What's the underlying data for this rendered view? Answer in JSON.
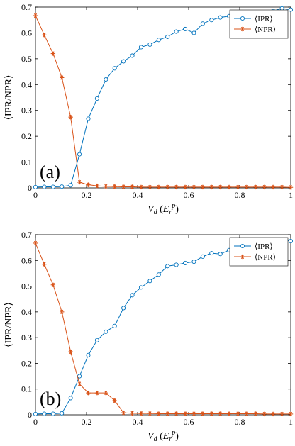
{
  "colors": {
    "ipr": "#0072BD",
    "npr": "#D95319"
  },
  "chart_data": [
    {
      "type": "line",
      "panel_label": "(a)",
      "xlabel": "V_d (E_r^p)",
      "ylabel": "⟨IPR/NPR⟩",
      "xlim": [
        0,
        1
      ],
      "ylim": [
        0,
        0.7
      ],
      "xticks": [
        "0",
        "0.2",
        "0.4",
        "0.6",
        "0.8",
        "1"
      ],
      "yticks": [
        "0",
        "0.1",
        "0.2",
        "0.3",
        "0.4",
        "0.5",
        "0.6",
        "0.7"
      ],
      "legend_position": "top-right",
      "series": [
        {
          "name": "⟨IPR⟩",
          "marker": "circle",
          "x": [
            0,
            0.0345,
            0.069,
            0.1034,
            0.1379,
            0.1724,
            0.2069,
            0.2414,
            0.2759,
            0.3103,
            0.3448,
            0.3793,
            0.4138,
            0.4483,
            0.4828,
            0.5172,
            0.5517,
            0.5862,
            0.6207,
            0.6552,
            0.6897,
            0.7241,
            0.7586,
            0.7931,
            0.8276,
            0.8621,
            0.8966,
            0.931,
            0.9655,
            1
          ],
          "y": [
            0.003,
            0.004,
            0.004,
            0.005,
            0.01,
            0.13,
            0.268,
            0.346,
            0.42,
            0.463,
            0.49,
            0.512,
            0.545,
            0.555,
            0.573,
            0.585,
            0.605,
            0.615,
            0.6,
            0.636,
            0.65,
            0.66,
            0.665,
            0.67,
            0.674,
            0.68,
            0.68,
            0.685,
            0.695,
            0.69
          ]
        },
        {
          "name": "⟨NPR⟩",
          "marker": "asterisk",
          "x": [
            0,
            0.0345,
            0.069,
            0.1034,
            0.1379,
            0.1724,
            0.2069,
            0.2414,
            0.2759,
            0.3103,
            0.3448,
            0.3793,
            0.4138,
            0.4483,
            0.4828,
            0.5172,
            0.5517,
            0.5862,
            0.6207,
            0.6552,
            0.6897,
            0.7241,
            0.7586,
            0.7931,
            0.8276,
            0.8621,
            0.8966,
            0.931,
            0.9655,
            1
          ],
          "y": [
            0.667,
            0.592,
            0.52,
            0.427,
            0.274,
            0.022,
            0.012,
            0.008,
            0.006,
            0.005,
            0.004,
            0.004,
            0.003,
            0.003,
            0.003,
            0.003,
            0.003,
            0.003,
            0.003,
            0.003,
            0.003,
            0.003,
            0.003,
            0.003,
            0.003,
            0.003,
            0.003,
            0.003,
            0.003,
            0.002
          ]
        }
      ]
    },
    {
      "type": "line",
      "panel_label": "(b)",
      "xlabel": "V_d (E_r^p)",
      "ylabel": "⟨IPR/NPR⟩",
      "xlim": [
        0,
        1
      ],
      "ylim": [
        0,
        0.7
      ],
      "xticks": [
        "0",
        "0.2",
        "0.4",
        "0.6",
        "0.8",
        "1"
      ],
      "yticks": [
        "0",
        "0.1",
        "0.2",
        "0.3",
        "0.4",
        "0.5",
        "0.6",
        "0.7"
      ],
      "legend_position": "top-right",
      "series": [
        {
          "name": "⟨IPR⟩",
          "marker": "circle",
          "x": [
            0,
            0.0345,
            0.069,
            0.1034,
            0.1379,
            0.1724,
            0.2069,
            0.2414,
            0.2759,
            0.3103,
            0.3448,
            0.3793,
            0.4138,
            0.4483,
            0.4828,
            0.5172,
            0.5517,
            0.5862,
            0.6207,
            0.6552,
            0.6897,
            0.7241,
            0.7586,
            0.7931,
            0.8276,
            0.8621,
            0.8966,
            0.931,
            0.9655,
            1
          ],
          "y": [
            0.003,
            0.004,
            0.004,
            0.006,
            0.065,
            0.15,
            0.232,
            0.29,
            0.323,
            0.345,
            0.415,
            0.465,
            0.495,
            0.52,
            0.545,
            0.578,
            0.583,
            0.59,
            0.595,
            0.615,
            0.628,
            0.625,
            0.64,
            0.648,
            0.655,
            0.66,
            0.665,
            0.665,
            0.68,
            0.675
          ]
        },
        {
          "name": "⟨NPR⟩",
          "marker": "asterisk",
          "x": [
            0,
            0.0345,
            0.069,
            0.1034,
            0.1379,
            0.1724,
            0.2069,
            0.2414,
            0.2759,
            0.3103,
            0.3448,
            0.3793,
            0.4138,
            0.4483,
            0.4828,
            0.5172,
            0.5517,
            0.5862,
            0.6207,
            0.6552,
            0.6897,
            0.7241,
            0.7586,
            0.7931,
            0.8276,
            0.8621,
            0.8966,
            0.931,
            0.9655,
            1
          ],
          "y": [
            0.667,
            0.585,
            0.505,
            0.4,
            0.245,
            0.12,
            0.085,
            0.085,
            0.085,
            0.055,
            0.008,
            0.006,
            0.005,
            0.005,
            0.004,
            0.004,
            0.004,
            0.004,
            0.004,
            0.004,
            0.004,
            0.004,
            0.004,
            0.004,
            0.004,
            0.004,
            0.003,
            0.003,
            0.003,
            0.003
          ]
        }
      ]
    }
  ]
}
